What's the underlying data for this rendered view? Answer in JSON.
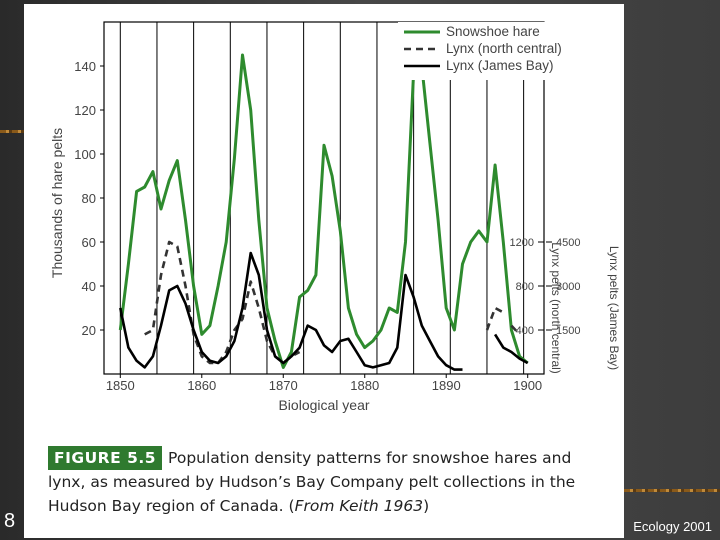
{
  "slide": {
    "number": "8",
    "footer": "Ecology 2001"
  },
  "caption": {
    "label": "FIGURE 5.5",
    "text": "Population density patterns for snowshoe hares and lynx, as measured by Hudson’s Bay Company pelt collections in the Hudson Bay region of Canada. (",
    "source": "From Keith 1963",
    "close": ")"
  },
  "colors": {
    "hare": "#2e8b2e",
    "lynx_nc": "#333333",
    "lynx_jb": "#000000"
  },
  "chart_data": {
    "type": "line",
    "title": "",
    "xlabel": "Biological year",
    "ylabel": "Thousands of hare pelts",
    "ylabel_right1": "Lynx pelts (north central)",
    "ylabel_right2": "Lynx pelts (James Bay)",
    "xlim": [
      1848,
      1902
    ],
    "ylim": [
      0,
      160
    ],
    "x_ticks": [
      "1850",
      "1860",
      "1870",
      "1880",
      "1890",
      "1900"
    ],
    "y_ticks": [
      "20",
      "40",
      "60",
      "80",
      "100",
      "120",
      "140"
    ],
    "right_ticks_nc": [
      "400",
      "800",
      "1200"
    ],
    "right_ticks_jb": [
      "1500",
      "3000",
      "4500"
    ],
    "legend_position": "top-right",
    "legend": [
      "Snowshoe hare",
      "Lynx (north central)",
      "Lynx (James Bay)"
    ],
    "series": [
      {
        "name": "Snowshoe hare",
        "style": "solid",
        "x": [
          1850,
          1851,
          1852,
          1853,
          1854,
          1855,
          1856,
          1857,
          1858,
          1859,
          1860,
          1861,
          1862,
          1863,
          1864,
          1865,
          1866,
          1867,
          1868,
          1869,
          1870,
          1871,
          1872,
          1873,
          1874,
          1875,
          1876,
          1877,
          1878,
          1879,
          1880,
          1881,
          1882,
          1883,
          1884,
          1885,
          1886,
          1887,
          1888,
          1889,
          1890,
          1891,
          1892,
          1893,
          1894,
          1895,
          1896,
          1897,
          1898,
          1899,
          1900
        ],
        "y": [
          20,
          50,
          83,
          85,
          92,
          75,
          88,
          97,
          70,
          40,
          18,
          22,
          40,
          60,
          98,
          145,
          120,
          70,
          30,
          15,
          3,
          10,
          35,
          38,
          45,
          104,
          90,
          65,
          30,
          18,
          12,
          15,
          20,
          30,
          28,
          60,
          137,
          140,
          105,
          70,
          30,
          20,
          50,
          60,
          65,
          60,
          95,
          60,
          20,
          8,
          5
        ]
      },
      {
        "name": "Lynx (north central)",
        "style": "dashed",
        "x": [
          1853,
          1854,
          1855,
          1856,
          1857,
          1858,
          1859,
          1860,
          1861,
          1862,
          1863,
          1864,
          1865,
          1866,
          1867,
          1868,
          1869,
          1870,
          1871,
          1872,
          null,
          1895,
          1896,
          1897,
          null,
          1898,
          1899
        ],
        "y": [
          18,
          20,
          45,
          60,
          58,
          40,
          18,
          8,
          5,
          5,
          10,
          20,
          25,
          42,
          30,
          15,
          8,
          5,
          8,
          10,
          null,
          20,
          30,
          28,
          null,
          22,
          18
        ]
      },
      {
        "name": "Lynx (James Bay)",
        "style": "solid",
        "x": [
          1850,
          1851,
          1852,
          1853,
          1854,
          1855,
          1856,
          1857,
          1858,
          1859,
          1860,
          1861,
          1862,
          1863,
          1864,
          1865,
          1866,
          1867,
          1868,
          1869,
          1870,
          1871,
          1872,
          1873,
          1874,
          1875,
          1876,
          1877,
          1878,
          1879,
          1880,
          1881,
          1882,
          1883,
          1884,
          1885,
          1886,
          1887,
          1888,
          1889,
          1890,
          1891,
          1892,
          null,
          1896,
          1897,
          1898,
          1899,
          1900
        ],
        "y": [
          30,
          12,
          6,
          3,
          8,
          22,
          38,
          40,
          32,
          20,
          10,
          6,
          5,
          8,
          15,
          30,
          55,
          45,
          20,
          8,
          5,
          8,
          12,
          22,
          20,
          13,
          10,
          15,
          16,
          10,
          4,
          3,
          4,
          5,
          12,
          45,
          35,
          22,
          15,
          8,
          4,
          2,
          2,
          null,
          18,
          12,
          10,
          7,
          5
        ]
      }
    ]
  }
}
